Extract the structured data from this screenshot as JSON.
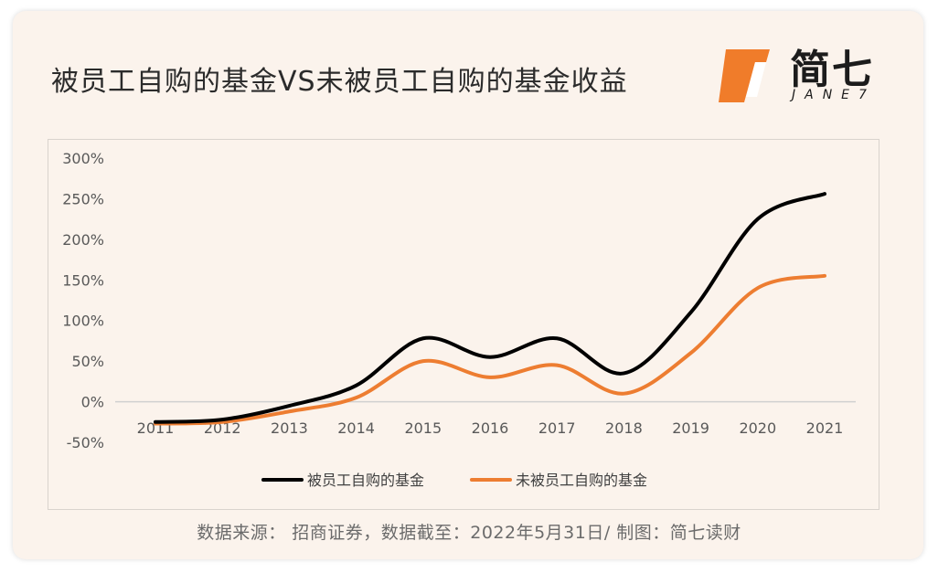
{
  "title": "被员工自购的基金VS未被员工自购的基金收益",
  "logo": {
    "text": "简七",
    "sub": "JANE7",
    "accent_color": "#f07c2a"
  },
  "source": "数据来源： 招商证券，数据截至：2022年5月31日/ 制图：简七读财",
  "chart_data": {
    "type": "line",
    "x": [
      "2011",
      "2012",
      "2013",
      "2014",
      "2015",
      "2016",
      "2017",
      "2018",
      "2019",
      "2020",
      "2021"
    ],
    "ylim": [
      -50,
      300
    ],
    "yticks": [
      "300%",
      "250%",
      "200%",
      "150%",
      "100%",
      "50%",
      "0%",
      "-50%"
    ],
    "ytick_values": [
      300,
      250,
      200,
      150,
      100,
      50,
      0,
      -50
    ],
    "grid": false,
    "legend_position": "bottom",
    "series": [
      {
        "name": "被员工自购的基金",
        "color": "#000000",
        "values": [
          -25,
          -22,
          -5,
          20,
          78,
          55,
          78,
          35,
          110,
          225,
          256
        ]
      },
      {
        "name": "未被员工自购的基金",
        "color": "#ed7d31",
        "values": [
          -27,
          -25,
          -12,
          5,
          50,
          30,
          45,
          10,
          60,
          140,
          155
        ]
      }
    ]
  }
}
